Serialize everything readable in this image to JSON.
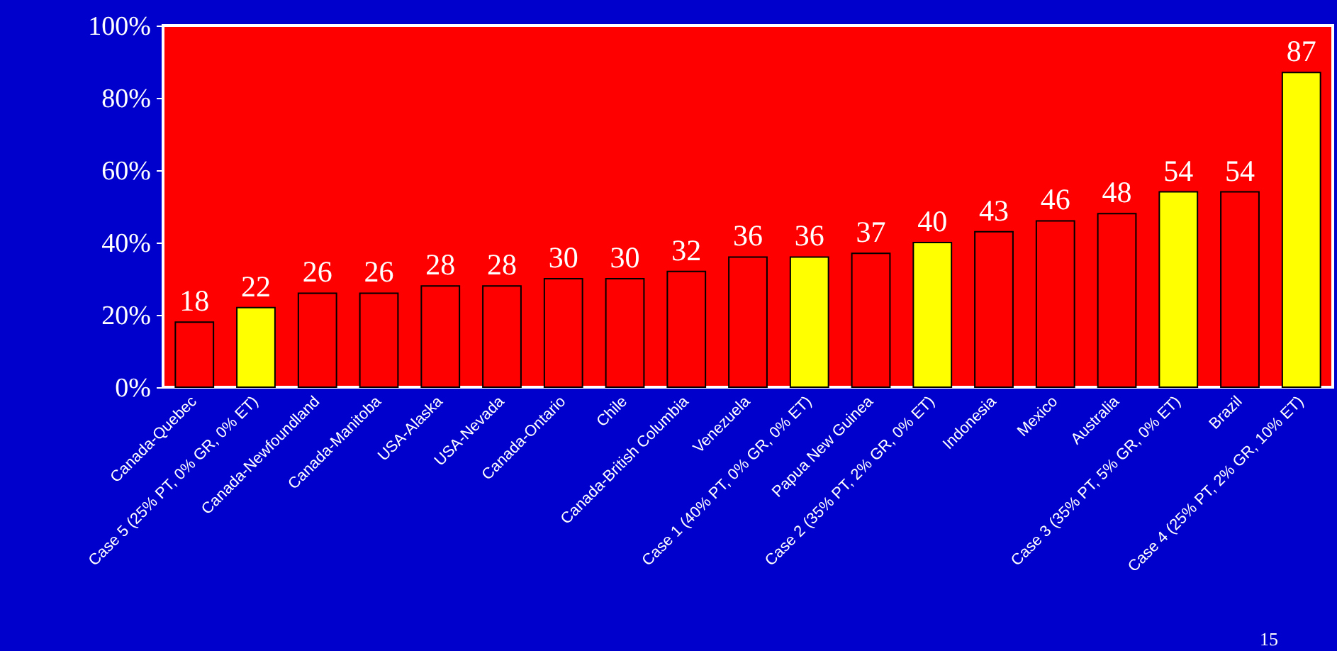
{
  "chart_data": {
    "type": "bar",
    "categories": [
      "Canada-Quebec",
      "Case 5 (25% PT, 0% GR, 0% ET)",
      "Canada-Newfoundland",
      "Canada-Manitoba",
      "USA-Alaska",
      "USA-Nevada",
      "Canada-Ontario",
      "Chile",
      "Canada-British Columbia",
      "Venezuela",
      "Case 1 (40% PT, 0% GR, 0% ET)",
      "Papua New Guinea",
      "Case 2 (35% PT, 2% GR, 0% ET)",
      "Indonesia",
      "Mexico",
      "Australia",
      "Case 3 (35% PT, 5% GR, 0% ET)",
      "Brazil",
      "Case 4 (25% PT, 2% GR, 10% ET)"
    ],
    "values": [
      18,
      22,
      26,
      26,
      28,
      28,
      30,
      30,
      32,
      36,
      36,
      37,
      40,
      43,
      46,
      48,
      54,
      54,
      87
    ],
    "colors": [
      "#ff0000",
      "#ffff00",
      "#ff0000",
      "#ff0000",
      "#ff0000",
      "#ff0000",
      "#ff0000",
      "#ff0000",
      "#ff0000",
      "#ff0000",
      "#ffff00",
      "#ff0000",
      "#ffff00",
      "#ff0000",
      "#ff0000",
      "#ff0000",
      "#ffff00",
      "#ff0000",
      "#ffff00"
    ],
    "ylim": [
      0,
      100
    ],
    "yticks": [
      {
        "value": 0,
        "label": "0%"
      },
      {
        "value": 20,
        "label": "20%"
      },
      {
        "value": 40,
        "label": "40%"
      },
      {
        "value": 60,
        "label": "60%"
      },
      {
        "value": 80,
        "label": "80%"
      },
      {
        "value": 100,
        "label": "100%"
      }
    ],
    "data_labels": true,
    "grid": false,
    "annotations": [
      "15"
    ]
  }
}
